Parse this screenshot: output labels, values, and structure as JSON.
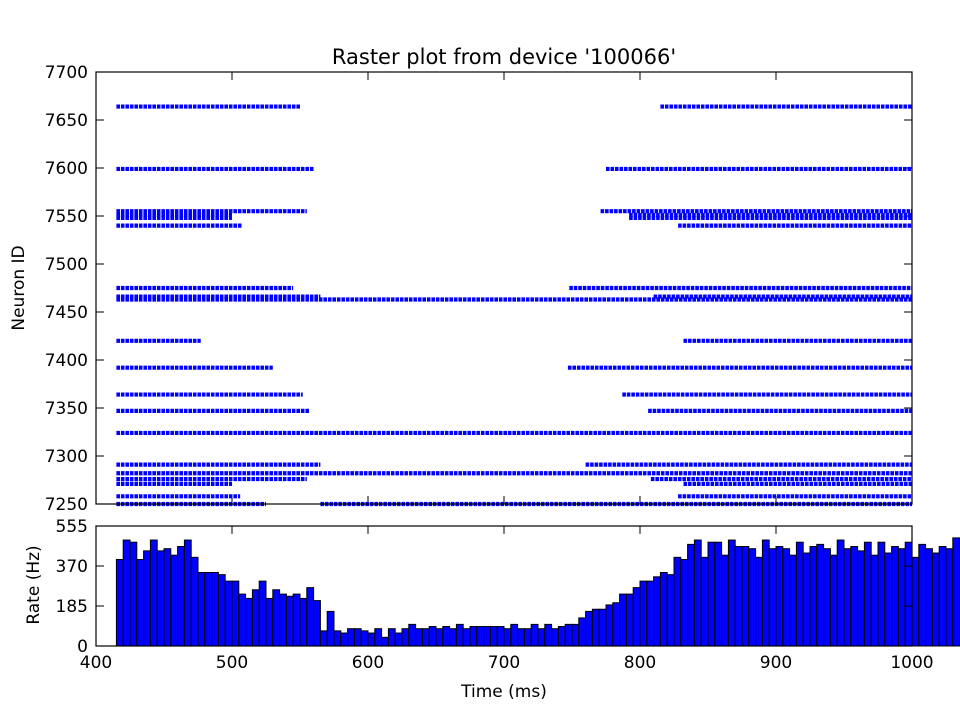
{
  "chart_data": [
    {
      "type": "scatter",
      "title": "Raster plot from device '100066'",
      "xlabel": "",
      "ylabel": "Neuron ID",
      "xlim": [
        400,
        1000
      ],
      "ylim": [
        7250,
        7700
      ],
      "yticks": [
        7250,
        7300,
        7350,
        7400,
        7450,
        7500,
        7550,
        7600,
        7650,
        7700
      ],
      "marker_color": "#0000ff",
      "segments": [
        {
          "id": 7664,
          "ranges": [
            [
              415,
              550
            ],
            [
              815,
              1000
            ]
          ]
        },
        {
          "id": 7599,
          "ranges": [
            [
              415,
              560
            ],
            [
              775,
              1000
            ]
          ]
        },
        {
          "id": 7555,
          "ranges": [
            [
              415,
              555
            ],
            [
              771,
              1000
            ]
          ]
        },
        {
          "id": 7551,
          "ranges": [
            [
              415,
              500
            ],
            [
              792,
              1000
            ]
          ]
        },
        {
          "id": 7548,
          "ranges": [
            [
              415,
              500
            ],
            [
              792,
              1000
            ]
          ]
        },
        {
          "id": 7540,
          "ranges": [
            [
              415,
              507
            ],
            [
              828,
              1000
            ]
          ]
        },
        {
          "id": 7475,
          "ranges": [
            [
              415,
              545
            ],
            [
              748,
              1000
            ]
          ]
        },
        {
          "id": 7466,
          "ranges": [
            [
              415,
              565
            ],
            [
              810,
              1000
            ]
          ]
        },
        {
          "id": 7463,
          "ranges": [
            [
              415,
              1000
            ]
          ]
        },
        {
          "id": 7420,
          "ranges": [
            [
              415,
              477
            ],
            [
              832,
              1000
            ]
          ]
        },
        {
          "id": 7392,
          "ranges": [
            [
              415,
              530
            ],
            [
              747,
              1000
            ]
          ]
        },
        {
          "id": 7364,
          "ranges": [
            [
              415,
              552
            ],
            [
              787,
              1000
            ]
          ]
        },
        {
          "id": 7347,
          "ranges": [
            [
              415,
              557
            ],
            [
              806,
              1000
            ]
          ]
        },
        {
          "id": 7324,
          "ranges": [
            [
              415,
              1000
            ]
          ]
        },
        {
          "id": 7291,
          "ranges": [
            [
              415,
              565
            ],
            [
              760,
              1000
            ]
          ]
        },
        {
          "id": 7282,
          "ranges": [
            [
              415,
              1000
            ]
          ]
        },
        {
          "id": 7276,
          "ranges": [
            [
              415,
              555
            ],
            [
              808,
              1000
            ]
          ]
        },
        {
          "id": 7271,
          "ranges": [
            [
              415,
              500
            ],
            [
              832,
              1000
            ]
          ]
        },
        {
          "id": 7258,
          "ranges": [
            [
              415,
              506
            ],
            [
              828,
              1000
            ]
          ]
        },
        {
          "id": 7250,
          "ranges": [
            [
              415,
              525
            ],
            [
              565,
              1000
            ]
          ]
        }
      ]
    },
    {
      "type": "bar",
      "title": "",
      "xlabel": "Time (ms)",
      "ylabel": "Rate (Hz)",
      "xlim": [
        400,
        1000
      ],
      "ylim": [
        0,
        555
      ],
      "xticks": [
        400,
        500,
        600,
        700,
        800,
        900,
        1000
      ],
      "yticks": [
        0,
        185,
        370,
        555
      ],
      "bar_color": "#0000ff",
      "bin_start": 415,
      "bin_width": 5,
      "values": [
        400,
        490,
        480,
        400,
        440,
        490,
        440,
        450,
        420,
        460,
        490,
        410,
        340,
        340,
        340,
        330,
        300,
        300,
        240,
        220,
        260,
        300,
        220,
        260,
        240,
        230,
        240,
        220,
        270,
        210,
        70,
        160,
        70,
        60,
        80,
        80,
        70,
        60,
        80,
        40,
        80,
        60,
        80,
        100,
        80,
        80,
        90,
        80,
        90,
        80,
        100,
        80,
        90,
        90,
        90,
        90,
        90,
        80,
        100,
        80,
        80,
        100,
        80,
        100,
        80,
        90,
        100,
        100,
        130,
        160,
        170,
        170,
        190,
        200,
        240,
        240,
        270,
        300,
        300,
        320,
        340,
        330,
        410,
        400,
        470,
        490,
        410,
        480,
        480,
        420,
        490,
        460,
        460,
        450,
        410,
        490,
        450,
        460,
        450,
        420,
        480,
        430,
        460,
        470,
        450,
        420,
        490,
        450,
        460,
        440,
        480,
        420,
        480,
        430,
        460,
        450,
        480,
        410,
        470,
        450,
        430,
        460,
        450,
        500,
        460
      ]
    }
  ]
}
